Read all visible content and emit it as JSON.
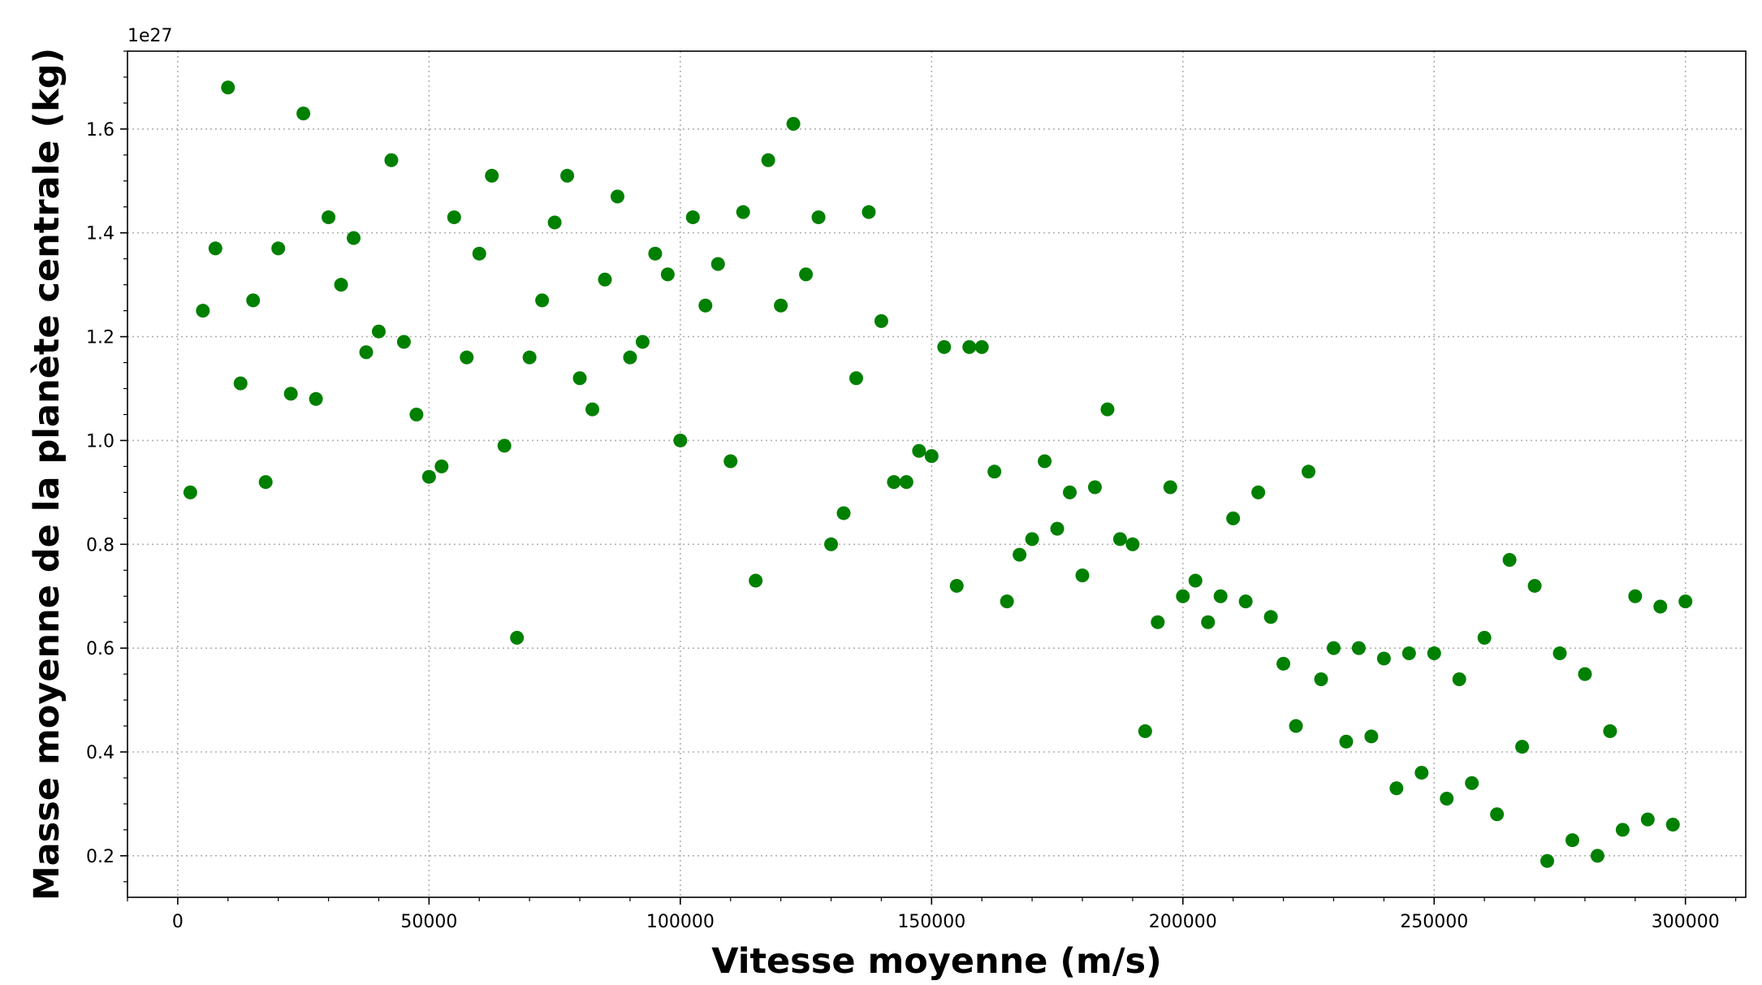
{
  "chart_data": {
    "type": "scatter",
    "xlabel": "Vitesse moyenne (m/s)",
    "ylabel": "Masse moyenne de la planète centrale (kg)",
    "y_offset_label": "1e27",
    "xlim": [
      -10000,
      312000
    ],
    "ylim": [
      0.12,
      1.75
    ],
    "x_ticks": [
      0,
      50000,
      100000,
      150000,
      200000,
      250000,
      300000
    ],
    "x_tick_labels": [
      "0",
      "50000",
      "100000",
      "150000",
      "200000",
      "250000",
      "300000"
    ],
    "y_ticks": [
      0.2,
      0.4,
      0.6,
      0.8,
      1.0,
      1.2,
      1.4,
      1.6
    ],
    "y_tick_labels": [
      "0.2",
      "0.4",
      "0.6",
      "0.8",
      "1.0",
      "1.2",
      "1.4",
      "1.6"
    ],
    "y_scale_note": "values in units of 1e27 kg",
    "grid": true,
    "marker_color": "#008000",
    "points": [
      [
        2500,
        0.9
      ],
      [
        5000,
        1.25
      ],
      [
        7500,
        1.37
      ],
      [
        10000,
        1.68
      ],
      [
        12500,
        1.11
      ],
      [
        15000,
        1.27
      ],
      [
        17500,
        0.92
      ],
      [
        20000,
        1.37
      ],
      [
        22500,
        1.09
      ],
      [
        25000,
        1.63
      ],
      [
        27500,
        1.08
      ],
      [
        30000,
        1.43
      ],
      [
        32500,
        1.3
      ],
      [
        35000,
        1.39
      ],
      [
        37500,
        1.17
      ],
      [
        40000,
        1.21
      ],
      [
        42500,
        1.54
      ],
      [
        45000,
        1.19
      ],
      [
        47500,
        1.05
      ],
      [
        50000,
        0.93
      ],
      [
        52500,
        0.95
      ],
      [
        55000,
        1.43
      ],
      [
        57500,
        1.16
      ],
      [
        60000,
        1.36
      ],
      [
        62500,
        1.51
      ],
      [
        65000,
        0.99
      ],
      [
        67500,
        0.62
      ],
      [
        70000,
        1.16
      ],
      [
        72500,
        1.27
      ],
      [
        75000,
        1.42
      ],
      [
        77500,
        1.51
      ],
      [
        80000,
        1.12
      ],
      [
        82500,
        1.06
      ],
      [
        85000,
        1.31
      ],
      [
        87500,
        1.47
      ],
      [
        90000,
        1.16
      ],
      [
        92500,
        1.19
      ],
      [
        95000,
        1.36
      ],
      [
        97500,
        1.32
      ],
      [
        100000,
        1.0
      ],
      [
        102500,
        1.43
      ],
      [
        105000,
        1.26
      ],
      [
        107500,
        1.34
      ],
      [
        110000,
        0.96
      ],
      [
        112500,
        1.44
      ],
      [
        115000,
        0.73
      ],
      [
        117500,
        1.54
      ],
      [
        120000,
        1.26
      ],
      [
        122500,
        1.61
      ],
      [
        125000,
        1.32
      ],
      [
        127500,
        1.43
      ],
      [
        130000,
        0.8
      ],
      [
        132500,
        0.86
      ],
      [
        135000,
        1.12
      ],
      [
        137500,
        1.44
      ],
      [
        140000,
        1.23
      ],
      [
        142500,
        0.92
      ],
      [
        145000,
        0.92
      ],
      [
        147500,
        0.98
      ],
      [
        150000,
        0.97
      ],
      [
        152500,
        1.18
      ],
      [
        155000,
        0.72
      ],
      [
        157500,
        1.18
      ],
      [
        160000,
        1.18
      ],
      [
        162500,
        0.94
      ],
      [
        165000,
        0.69
      ],
      [
        167500,
        0.78
      ],
      [
        170000,
        0.81
      ],
      [
        172500,
        0.96
      ],
      [
        175000,
        0.83
      ],
      [
        177500,
        0.9
      ],
      [
        180000,
        0.74
      ],
      [
        182500,
        0.91
      ],
      [
        185000,
        1.06
      ],
      [
        187500,
        0.81
      ],
      [
        190000,
        0.8
      ],
      [
        192500,
        0.44
      ],
      [
        195000,
        0.65
      ],
      [
        197500,
        0.91
      ],
      [
        200000,
        0.7
      ],
      [
        202500,
        0.73
      ],
      [
        205000,
        0.65
      ],
      [
        207500,
        0.7
      ],
      [
        210000,
        0.85
      ],
      [
        212500,
        0.69
      ],
      [
        215000,
        0.9
      ],
      [
        217500,
        0.66
      ],
      [
        220000,
        0.57
      ],
      [
        222500,
        0.45
      ],
      [
        225000,
        0.94
      ],
      [
        227500,
        0.54
      ],
      [
        230000,
        0.6
      ],
      [
        232500,
        0.42
      ],
      [
        235000,
        0.6
      ],
      [
        237500,
        0.43
      ],
      [
        240000,
        0.58
      ],
      [
        242500,
        0.33
      ],
      [
        245000,
        0.59
      ],
      [
        247500,
        0.36
      ],
      [
        250000,
        0.59
      ],
      [
        252500,
        0.31
      ],
      [
        255000,
        0.54
      ],
      [
        257500,
        0.34
      ],
      [
        260000,
        0.62
      ],
      [
        262500,
        0.28
      ],
      [
        265000,
        0.77
      ],
      [
        267500,
        0.41
      ],
      [
        270000,
        0.72
      ],
      [
        272500,
        0.19
      ],
      [
        275000,
        0.59
      ],
      [
        277500,
        0.23
      ],
      [
        280000,
        0.55
      ],
      [
        282500,
        0.2
      ],
      [
        285000,
        0.44
      ],
      [
        287500,
        0.25
      ],
      [
        290000,
        0.7
      ],
      [
        292500,
        0.27
      ],
      [
        295000,
        0.68
      ],
      [
        297500,
        0.26
      ],
      [
        300000,
        0.69
      ]
    ]
  }
}
